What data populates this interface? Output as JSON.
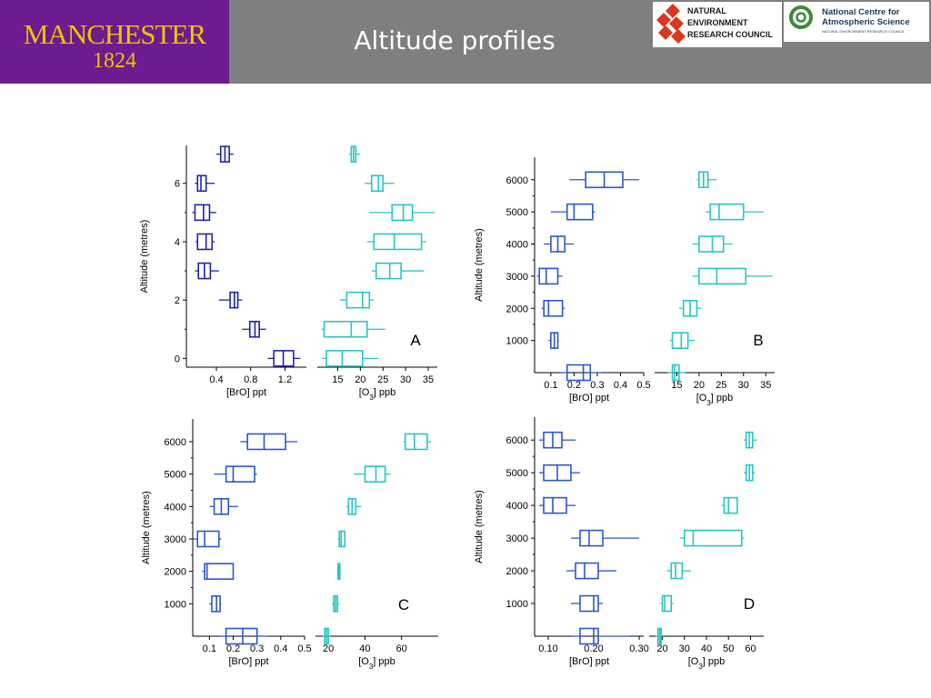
{
  "header": {
    "title": "Altitude profiles",
    "university": {
      "name": "MANCHESTER",
      "year": "1824"
    },
    "nerc": {
      "lines": [
        "NATURAL",
        "ENVIRONMENT",
        "RESEARCH COUNCIL"
      ]
    },
    "ncas": {
      "title": "National Centre for Atmospheric Science",
      "subtitle": "NATURAL ENVIRONMENT RESEARCH COUNCIL"
    }
  },
  "colors": {
    "header_bg": "#7f7f7f",
    "university_bg": "#6b1c8e",
    "university_text": "#f2c300",
    "bro_panelA": "#2323a8",
    "bro": "#2b58c8",
    "o3": "#2bc4c4",
    "nerc_red": "#d9381e",
    "ncas_green": "#3a8a3a"
  },
  "chart_data": [
    {
      "panel": "A",
      "type": "boxplot",
      "ylabel": "Altitude (metres)",
      "ylim": [
        -0.3,
        7.3
      ],
      "yticks": [
        0,
        2,
        4,
        6
      ],
      "bro": {
        "xlabel": "[BrO] ppt",
        "xlim": [
          0.05,
          1.45
        ],
        "xticks": [
          0.4,
          0.8,
          1.2
        ],
        "xtick_labels": [
          "0.4",
          "0.8",
          "1.2"
        ],
        "boxes": [
          {
            "y": 7,
            "whisker_low": 0.4,
            "q1": 0.45,
            "median": 0.5,
            "q3": 0.55,
            "whisker_high": 0.6
          },
          {
            "y": 6,
            "whisker_low": 0.15,
            "q1": 0.18,
            "median": 0.22,
            "q3": 0.28,
            "whisker_high": 0.38
          },
          {
            "y": 5,
            "whisker_low": 0.12,
            "q1": 0.15,
            "median": 0.25,
            "q3": 0.32,
            "whisker_high": 0.4
          },
          {
            "y": 4,
            "whisker_low": 0.16,
            "q1": 0.18,
            "median": 0.28,
            "q3": 0.35,
            "whisker_high": 0.38
          },
          {
            "y": 3,
            "whisker_low": 0.15,
            "q1": 0.19,
            "median": 0.26,
            "q3": 0.33,
            "whisker_high": 0.43
          },
          {
            "y": 2,
            "whisker_low": 0.43,
            "q1": 0.56,
            "median": 0.61,
            "q3": 0.65,
            "whisker_high": 0.7
          },
          {
            "y": 1,
            "whisker_low": 0.7,
            "q1": 0.79,
            "median": 0.85,
            "q3": 0.9,
            "whisker_high": 0.98
          },
          {
            "y": 0,
            "whisker_low": 1.0,
            "q1": 1.07,
            "median": 1.18,
            "q3": 1.3,
            "whisker_high": 1.38
          }
        ]
      },
      "o3": {
        "xlabel": "[O3] ppb",
        "xlabel_main": "[O",
        "xlabel_sub": "3",
        "xlabel_rest": "] ppb",
        "xlim": [
          10.5,
          37
        ],
        "xticks": [
          15,
          20,
          25,
          30,
          35
        ],
        "xtick_labels": [
          "15",
          "20",
          "25",
          "30",
          "35"
        ],
        "boxes": [
          {
            "y": 7,
            "whisker_low": 17.5,
            "q1": 18,
            "median": 18.5,
            "q3": 19,
            "whisker_high": 20
          },
          {
            "y": 6,
            "whisker_low": 21,
            "q1": 22.5,
            "median": 24,
            "q3": 25,
            "whisker_high": 27.5
          },
          {
            "y": 5,
            "whisker_low": 22,
            "q1": 27,
            "median": 29.5,
            "q3": 31.5,
            "whisker_high": 36.5
          },
          {
            "y": 4,
            "whisker_low": 21.5,
            "q1": 23,
            "median": 27.5,
            "q3": 33.5,
            "whisker_high": 34.5
          },
          {
            "y": 3,
            "whisker_low": 22.5,
            "q1": 23.5,
            "median": 26.5,
            "q3": 29,
            "whisker_high": 34
          },
          {
            "y": 2,
            "whisker_low": 15.5,
            "q1": 17,
            "median": 20.5,
            "q3": 22,
            "whisker_high": 23
          },
          {
            "y": 1,
            "whisker_low": 11.5,
            "q1": 12,
            "median": 18,
            "q3": 21.5,
            "whisker_high": 25.5
          },
          {
            "y": 0,
            "whisker_low": 11.5,
            "q1": 12.5,
            "median": 16,
            "q3": 20.5,
            "whisker_high": 24
          }
        ]
      }
    },
    {
      "panel": "B",
      "type": "boxplot",
      "ylabel": "Altitude (metres)",
      "ylim": [
        0,
        6700
      ],
      "yticks": [
        1000,
        2000,
        3000,
        4000,
        5000,
        6000
      ],
      "bro": {
        "xlabel": "[BrO] ppt",
        "xlim": [
          0.03,
          0.5
        ],
        "xticks": [
          0.1,
          0.2,
          0.3,
          0.4,
          0.5
        ],
        "xtick_labels": [
          "0.1",
          "0.2",
          "0.3",
          "0.4",
          "0.5"
        ],
        "boxes": [
          {
            "y": 6000,
            "whisker_low": 0.18,
            "q1": 0.25,
            "median": 0.33,
            "q3": 0.41,
            "whisker_high": 0.48
          },
          {
            "y": 5000,
            "whisker_low": 0.1,
            "q1": 0.17,
            "median": 0.2,
            "q3": 0.28,
            "whisker_high": 0.29
          },
          {
            "y": 4000,
            "whisker_low": 0.07,
            "q1": 0.1,
            "median": 0.13,
            "q3": 0.16,
            "whisker_high": 0.2
          },
          {
            "y": 3000,
            "whisker_low": 0.04,
            "q1": 0.05,
            "median": 0.08,
            "q3": 0.13,
            "whisker_high": 0.15
          },
          {
            "y": 2000,
            "whisker_low": 0.06,
            "q1": 0.07,
            "median": 0.09,
            "q3": 0.15,
            "whisker_high": 0.16
          },
          {
            "y": 1000,
            "whisker_low": 0.09,
            "q1": 0.1,
            "median": 0.115,
            "q3": 0.13,
            "whisker_high": 0.135
          },
          {
            "y": 0,
            "whisker_low": 0.14,
            "q1": 0.17,
            "median": 0.24,
            "q3": 0.27,
            "whisker_high": 0.32
          }
        ]
      },
      "o3": {
        "xlabel": "[O3] ppb",
        "xlabel_main": "[O",
        "xlabel_sub": "3",
        "xlabel_rest": "] ppb",
        "xlim": [
          10,
          37
        ],
        "xticks": [
          15,
          20,
          25,
          30,
          35
        ],
        "xtick_labels": [
          "15",
          "20",
          "25",
          "30",
          "35"
        ],
        "boxes": [
          {
            "y": 6000,
            "whisker_low": 19.5,
            "q1": 20,
            "median": 21,
            "q3": 22,
            "whisker_high": 24
          },
          {
            "y": 5000,
            "whisker_low": 21.5,
            "q1": 22.5,
            "median": 24.5,
            "q3": 30,
            "whisker_high": 34.5
          },
          {
            "y": 4000,
            "whisker_low": 18.5,
            "q1": 20,
            "median": 23,
            "q3": 25.5,
            "whisker_high": 27.5
          },
          {
            "y": 3000,
            "whisker_low": 18.5,
            "q1": 20,
            "median": 24,
            "q3": 30.5,
            "whisker_high": 36.5
          },
          {
            "y": 2000,
            "whisker_low": 15.5,
            "q1": 16.5,
            "median": 18,
            "q3": 19.5,
            "whisker_high": 20.5
          },
          {
            "y": 1000,
            "whisker_low": 13.5,
            "q1": 14,
            "median": 16,
            "q3": 17.5,
            "whisker_high": 19
          },
          {
            "y": 0,
            "whisker_low": 13,
            "q1": 14,
            "median": 14.5,
            "q3": 15.5,
            "whisker_high": 17
          }
        ]
      }
    },
    {
      "panel": "C",
      "type": "boxplot",
      "ylabel": "Altitude (metres)",
      "ylim": [
        0,
        6700
      ],
      "yticks": [
        1000,
        2000,
        3000,
        4000,
        5000,
        6000
      ],
      "bro": {
        "xlabel": "[BrO] ppt",
        "xlim": [
          0.03,
          0.5
        ],
        "xticks": [
          0.1,
          0.2,
          0.3,
          0.4,
          0.5
        ],
        "xtick_labels": [
          "0.1",
          "0.2",
          "0.3",
          "0.4",
          "0.5"
        ],
        "boxes": [
          {
            "y": 6000,
            "whisker_low": 0.23,
            "q1": 0.26,
            "median": 0.33,
            "q3": 0.42,
            "whisker_high": 0.47
          },
          {
            "y": 5000,
            "whisker_low": 0.12,
            "q1": 0.17,
            "median": 0.2,
            "q3": 0.29,
            "whisker_high": 0.3
          },
          {
            "y": 4000,
            "whisker_low": 0.1,
            "q1": 0.12,
            "median": 0.15,
            "q3": 0.18,
            "whisker_high": 0.22
          },
          {
            "y": 3000,
            "whisker_low": 0.03,
            "q1": 0.05,
            "median": 0.08,
            "q3": 0.14,
            "whisker_high": 0.15
          },
          {
            "y": 2000,
            "whisker_low": 0.07,
            "q1": 0.08,
            "median": 0.09,
            "q3": 0.2,
            "whisker_high": 0.2
          },
          {
            "y": 1000,
            "whisker_low": 0.1,
            "q1": 0.11,
            "median": 0.13,
            "q3": 0.145,
            "whisker_high": 0.15
          },
          {
            "y": 0,
            "whisker_low": 0.14,
            "q1": 0.17,
            "median": 0.24,
            "q3": 0.3,
            "whisker_high": 0.35
          }
        ]
      },
      "o3": {
        "xlabel": "[O3] ppb",
        "xlabel_main": "[O",
        "xlabel_sub": "3",
        "xlabel_rest": "] ppb",
        "xlim": [
          13,
          80
        ],
        "xticks": [
          20,
          40,
          60
        ],
        "xtick_labels": [
          "20",
          "40",
          "60"
        ],
        "boxes": [
          {
            "y": 6000,
            "whisker_low": 61,
            "q1": 62,
            "median": 67,
            "q3": 74,
            "whisker_high": 76
          },
          {
            "y": 5000,
            "whisker_low": 34,
            "q1": 40,
            "median": 46,
            "q3": 51,
            "whisker_high": 54
          },
          {
            "y": 4000,
            "whisker_low": 30,
            "q1": 31,
            "median": 33,
            "q3": 35,
            "whisker_high": 38
          },
          {
            "y": 3000,
            "whisker_low": 25,
            "q1": 26,
            "median": 27,
            "q3": 29,
            "whisker_high": 29
          },
          {
            "y": 2000,
            "whisker_low": 25,
            "q1": 25.3,
            "median": 25.8,
            "q3": 26.3,
            "whisker_high": 26.8
          },
          {
            "y": 1000,
            "whisker_low": 22,
            "q1": 23,
            "median": 24,
            "q3": 25,
            "whisker_high": 26
          },
          {
            "y": 0,
            "whisker_low": 17,
            "q1": 18,
            "median": 19,
            "q3": 20,
            "whisker_high": 21
          }
        ]
      }
    },
    {
      "panel": "D",
      "type": "boxplot",
      "ylabel": "Altitude (metres)",
      "ylim": [
        0,
        6700
      ],
      "yticks": [
        1000,
        2000,
        3000,
        4000,
        5000,
        6000
      ],
      "bro": {
        "xlabel": "[BrO] ppt",
        "xlim": [
          0.07,
          0.31
        ],
        "xticks": [
          0.1,
          0.2,
          0.3
        ],
        "xtick_labels": [
          "0.10",
          "0.20",
          "0.30"
        ],
        "boxes": [
          {
            "y": 6000,
            "whisker_low": 0.08,
            "q1": 0.09,
            "median": 0.11,
            "q3": 0.13,
            "whisker_high": 0.16
          },
          {
            "y": 5000,
            "whisker_low": 0.08,
            "q1": 0.09,
            "median": 0.12,
            "q3": 0.15,
            "whisker_high": 0.17
          },
          {
            "y": 4000,
            "whisker_low": 0.08,
            "q1": 0.09,
            "median": 0.11,
            "q3": 0.14,
            "whisker_high": 0.16
          },
          {
            "y": 3000,
            "whisker_low": 0.15,
            "q1": 0.17,
            "median": 0.19,
            "q3": 0.22,
            "whisker_high": 0.3
          },
          {
            "y": 2000,
            "whisker_low": 0.14,
            "q1": 0.16,
            "median": 0.18,
            "q3": 0.21,
            "whisker_high": 0.25
          },
          {
            "y": 1000,
            "whisker_low": 0.15,
            "q1": 0.17,
            "median": 0.2,
            "q3": 0.21,
            "whisker_high": 0.22
          },
          {
            "y": 0,
            "whisker_low": 0.15,
            "q1": 0.17,
            "median": 0.2,
            "q3": 0.21,
            "whisker_high": 0.28
          }
        ]
      },
      "o3": {
        "xlabel": "[O3] ppb",
        "xlabel_main": "[O",
        "xlabel_sub": "3",
        "xlabel_rest": "] ppb",
        "xlim": [
          14,
          66
        ],
        "xticks": [
          20,
          30,
          40,
          50,
          60
        ],
        "xtick_labels": [
          "20",
          "30",
          "40",
          "50",
          "60"
        ],
        "boxes": [
          {
            "y": 6000,
            "whisker_low": 57,
            "q1": 58,
            "median": 59.5,
            "q3": 61,
            "whisker_high": 63
          },
          {
            "y": 5000,
            "whisker_low": 57,
            "q1": 58,
            "median": 59.5,
            "q3": 61,
            "whisker_high": 62
          },
          {
            "y": 4000,
            "whisker_low": 47,
            "q1": 48,
            "median": 50,
            "q3": 54,
            "whisker_high": 54
          },
          {
            "y": 3000,
            "whisker_low": 28,
            "q1": 30,
            "median": 34,
            "q3": 56,
            "whisker_high": 57
          },
          {
            "y": 2000,
            "whisker_low": 22,
            "q1": 24,
            "median": 26,
            "q3": 29,
            "whisker_high": 33
          },
          {
            "y": 1000,
            "whisker_low": 19,
            "q1": 20,
            "median": 21,
            "q3": 24,
            "whisker_high": 25
          },
          {
            "y": 0,
            "whisker_low": 17,
            "q1": 18,
            "median": 18.8,
            "q3": 19.5,
            "whisker_high": 20
          }
        ]
      }
    }
  ]
}
